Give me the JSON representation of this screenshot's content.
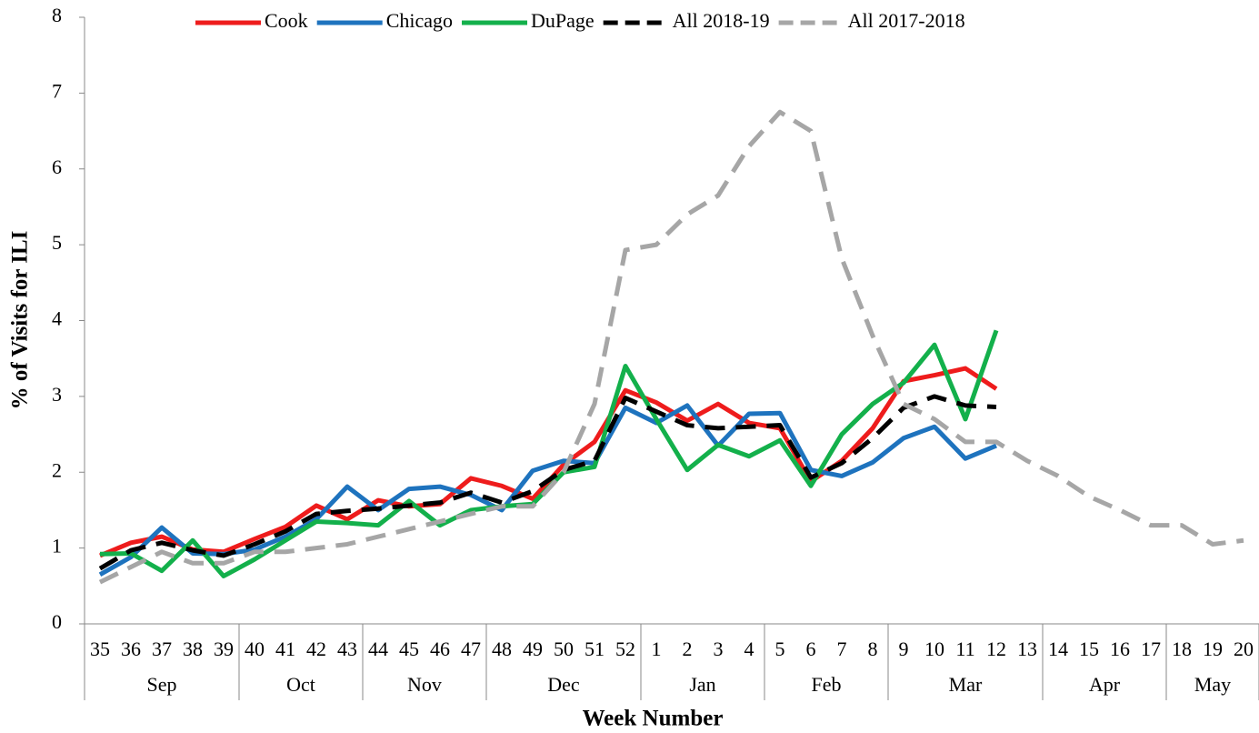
{
  "chart_data": {
    "type": "line",
    "y_label": "% of Visits for ILI",
    "x_label": "Week Number",
    "categories": [
      "35",
      "36",
      "37",
      "38",
      "39",
      "40",
      "41",
      "42",
      "43",
      "44",
      "45",
      "46",
      "47",
      "48",
      "49",
      "50",
      "51",
      "52",
      "1",
      "2",
      "3",
      "4",
      "5",
      "6",
      "7",
      "8",
      "9",
      "10",
      "11",
      "12",
      "13",
      "14",
      "15",
      "16",
      "17",
      "18",
      "19",
      "20"
    ],
    "groups": [
      {
        "label": "Sep",
        "size": 5
      },
      {
        "label": "Oct",
        "size": 4
      },
      {
        "label": "Nov",
        "size": 4
      },
      {
        "label": "Dec",
        "size": 5
      },
      {
        "label": "Jan",
        "size": 4
      },
      {
        "label": "Feb",
        "size": 4
      },
      {
        "label": "Mar",
        "size": 5
      },
      {
        "label": "Apr",
        "size": 4
      },
      {
        "label": "May",
        "size": 3
      }
    ],
    "series": [
      {
        "name": "Cook",
        "color": "#ee1c1c",
        "dash": false,
        "values": [
          0.9,
          1.07,
          1.15,
          0.98,
          0.95,
          1.12,
          1.28,
          1.56,
          1.38,
          1.63,
          1.55,
          1.58,
          1.92,
          1.82,
          1.65,
          2.1,
          2.4,
          3.08,
          2.92,
          2.68,
          2.9,
          2.65,
          2.58,
          1.88,
          2.15,
          2.58,
          3.2,
          3.28,
          3.37,
          3.1,
          null,
          null,
          null,
          null,
          null,
          null,
          null,
          null
        ]
      },
      {
        "name": "Chicago",
        "color": "#1e73be",
        "dash": false,
        "values": [
          0.65,
          0.88,
          1.27,
          0.93,
          0.92,
          0.98,
          1.15,
          1.38,
          1.81,
          1.5,
          1.78,
          1.81,
          1.7,
          1.5,
          2.02,
          2.15,
          2.12,
          2.85,
          2.65,
          2.88,
          2.35,
          2.77,
          2.78,
          2.03,
          1.95,
          2.13,
          2.45,
          2.6,
          2.18,
          2.35,
          null,
          null,
          null,
          null,
          null,
          null,
          null,
          null
        ]
      },
      {
        "name": "DuPage",
        "color": "#13b04b",
        "dash": false,
        "values": [
          0.92,
          0.93,
          0.7,
          1.1,
          0.63,
          0.85,
          1.1,
          1.35,
          1.33,
          1.3,
          1.62,
          1.3,
          1.5,
          1.55,
          1.58,
          2.0,
          2.07,
          3.4,
          2.7,
          2.03,
          2.36,
          2.21,
          2.42,
          1.82,
          2.5,
          2.9,
          3.18,
          3.68,
          2.7,
          3.87,
          null,
          null,
          null,
          null,
          null,
          null,
          null,
          null
        ]
      },
      {
        "name": "All 2018-19",
        "color": "#000000",
        "dash": true,
        "values": [
          0.73,
          0.97,
          1.07,
          0.97,
          0.9,
          1.05,
          1.22,
          1.45,
          1.49,
          1.52,
          1.56,
          1.6,
          1.73,
          1.6,
          1.75,
          2.03,
          2.15,
          2.98,
          2.8,
          2.62,
          2.58,
          2.6,
          2.62,
          1.93,
          2.12,
          2.45,
          2.85,
          3.0,
          2.88,
          2.86,
          null,
          null,
          null,
          null,
          null,
          null,
          null,
          null
        ]
      },
      {
        "name": "All 2017-2018",
        "color": "#a6a6a6",
        "dash": true,
        "values": [
          0.55,
          0.75,
          0.95,
          0.8,
          0.8,
          0.95,
          0.95,
          1.0,
          1.05,
          1.15,
          1.25,
          1.35,
          1.45,
          1.55,
          1.55,
          2.0,
          2.9,
          4.93,
          5.0,
          5.4,
          5.65,
          6.3,
          6.75,
          6.5,
          4.82,
          3.8,
          2.9,
          2.7,
          2.4,
          2.4,
          2.15,
          1.95,
          1.68,
          1.5,
          1.3,
          1.3,
          1.05,
          1.1
        ]
      }
    ],
    "ylim": [
      0,
      8
    ],
    "yticks": [
      0,
      1,
      2,
      3,
      4,
      5,
      6,
      7,
      8
    ]
  }
}
